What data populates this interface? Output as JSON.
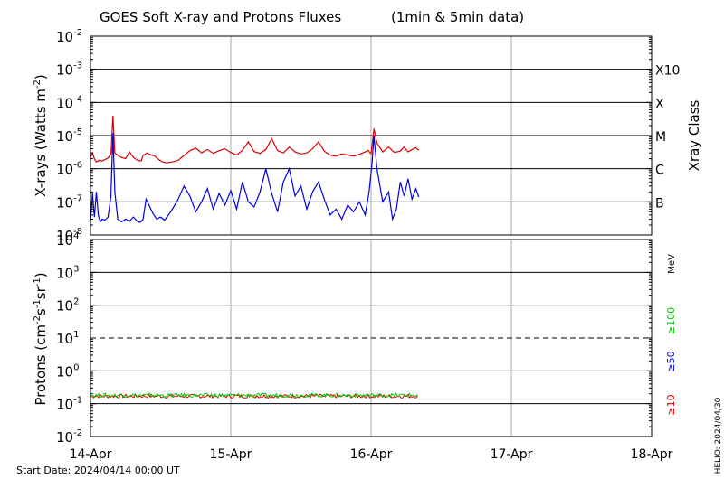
{
  "chart_data": [
    {
      "type": "line",
      "title": "GOES Soft X-ray and Protons Fluxes",
      "subtitle": "(1min & 5min data)",
      "ylabel_base": "X-rays (Watts m",
      "ylabel_exp": "-2",
      "ylabel_close": ")",
      "yscale": "log",
      "ylim": [
        1e-08,
        0.01
      ],
      "yticks": [
        {
          "exp": "-8",
          "value": 1e-08
        },
        {
          "exp": "-7",
          "value": 1e-07
        },
        {
          "exp": "-6",
          "value": 1e-06
        },
        {
          "exp": "-5",
          "value": 1e-05
        },
        {
          "exp": "-4",
          "value": 0.0001
        },
        {
          "exp": "-3",
          "value": 0.001
        },
        {
          "exp": "-2",
          "value": 0.01
        }
      ],
      "tick_base": "10",
      "right_axis_label": "Xray Class",
      "classes": [
        {
          "label": "B",
          "value": 1e-07
        },
        {
          "label": "C",
          "value": 1e-06
        },
        {
          "label": "M",
          "value": 1e-05
        },
        {
          "label": "X",
          "value": 0.0001
        },
        {
          "label": "X10",
          "value": 0.001
        }
      ],
      "x_range_days": [
        "2024-04-14",
        "2024-04-18"
      ],
      "series": [
        {
          "color": "#dd0000",
          "points": [
            [
              "2024-04-14T00:00",
              2.2e-06
            ],
            [
              "2024-04-14T00:20",
              3e-06
            ],
            [
              "2024-04-14T00:40",
              2e-06
            ],
            [
              "2024-04-14T01:00",
              1.6e-06
            ],
            [
              "2024-04-14T01:30",
              1.8e-06
            ],
            [
              "2024-04-14T02:00",
              1.7e-06
            ],
            [
              "2024-04-14T02:30",
              1.9e-06
            ],
            [
              "2024-04-14T03:00",
              2.1e-06
            ],
            [
              "2024-04-14T03:30",
              2.8e-06
            ],
            [
              "2024-04-14T03:50",
              4e-05
            ],
            [
              "2024-04-14T04:10",
              3e-06
            ],
            [
              "2024-04-14T05:00",
              2.3e-06
            ],
            [
              "2024-04-14T06:00",
              2e-06
            ],
            [
              "2024-04-14T06:40",
              3.2e-06
            ],
            [
              "2024-04-14T07:20",
              2.2e-06
            ],
            [
              "2024-04-14T08:00",
              1.8e-06
            ],
            [
              "2024-04-14T08:40",
              1.7e-06
            ],
            [
              "2024-04-14T09:00",
              2.5e-06
            ],
            [
              "2024-04-14T09:40",
              3e-06
            ],
            [
              "2024-04-14T10:20",
              2.6e-06
            ],
            [
              "2024-04-14T11:00",
              2.4e-06
            ],
            [
              "2024-04-14T11:40",
              1.9e-06
            ],
            [
              "2024-04-14T12:20",
              1.6e-06
            ],
            [
              "2024-04-14T13:00",
              1.5e-06
            ],
            [
              "2024-04-14T14:00",
              1.6e-06
            ],
            [
              "2024-04-14T15:00",
              1.8e-06
            ],
            [
              "2024-04-14T16:00",
              2.5e-06
            ],
            [
              "2024-04-14T17:00",
              3.5e-06
            ],
            [
              "2024-04-14T18:00",
              4.2e-06
            ],
            [
              "2024-04-14T19:00",
              3e-06
            ],
            [
              "2024-04-14T20:00",
              3.8e-06
            ],
            [
              "2024-04-14T21:00",
              2.9e-06
            ],
            [
              "2024-04-14T22:00",
              3.5e-06
            ],
            [
              "2024-04-14T23:00",
              4e-06
            ],
            [
              "2024-04-15T00:00",
              3.1e-06
            ],
            [
              "2024-04-15T01:00",
              2.6e-06
            ],
            [
              "2024-04-15T02:00",
              3.6e-06
            ],
            [
              "2024-04-15T03:00",
              6.5e-06
            ],
            [
              "2024-04-15T04:00",
              3.3e-06
            ],
            [
              "2024-04-15T05:00",
              2.9e-06
            ],
            [
              "2024-04-15T06:00",
              3.8e-06
            ],
            [
              "2024-04-15T07:00",
              8e-06
            ],
            [
              "2024-04-15T08:00",
              3.5e-06
            ],
            [
              "2024-04-15T09:00",
              3e-06
            ],
            [
              "2024-04-15T10:00",
              4.5e-06
            ],
            [
              "2024-04-15T11:00",
              3.2e-06
            ],
            [
              "2024-04-15T12:00",
              2.8e-06
            ],
            [
              "2024-04-15T13:00",
              3e-06
            ],
            [
              "2024-04-15T14:00",
              4e-06
            ],
            [
              "2024-04-15T15:00",
              6.5e-06
            ],
            [
              "2024-04-15T16:00",
              3.4e-06
            ],
            [
              "2024-04-15T17:00",
              2.6e-06
            ],
            [
              "2024-04-15T18:00",
              2.4e-06
            ],
            [
              "2024-04-15T19:00",
              2.8e-06
            ],
            [
              "2024-04-15T20:00",
              2.6e-06
            ],
            [
              "2024-04-15T21:00",
              2.4e-06
            ],
            [
              "2024-04-15T22:00",
              2.7e-06
            ],
            [
              "2024-04-15T23:00",
              3.2e-06
            ],
            [
              "2024-04-15T23:30",
              3.6e-06
            ],
            [
              "2024-04-16T00:00",
              2.8e-06
            ],
            [
              "2024-04-16T00:30",
              1.6e-05
            ],
            [
              "2024-04-16T01:00",
              6e-06
            ],
            [
              "2024-04-16T02:00",
              3.2e-06
            ],
            [
              "2024-04-16T03:00",
              4.5e-06
            ],
            [
              "2024-04-16T04:00",
              3.1e-06
            ],
            [
              "2024-04-16T05:00",
              3.4e-06
            ],
            [
              "2024-04-16T05:40",
              4.5e-06
            ],
            [
              "2024-04-16T06:20",
              3.2e-06
            ],
            [
              "2024-04-16T07:00",
              3.8e-06
            ],
            [
              "2024-04-16T07:40",
              4.3e-06
            ],
            [
              "2024-04-16T08:10",
              3.6e-06
            ]
          ]
        },
        {
          "color": "#0000dd",
          "points": [
            [
              "2024-04-14T00:00",
              2.5e-08
            ],
            [
              "2024-04-14T00:20",
              1.8e-07
            ],
            [
              "2024-04-14T00:40",
              3.5e-08
            ],
            [
              "2024-04-14T01:00",
              2e-07
            ],
            [
              "2024-04-14T01:20",
              4e-08
            ],
            [
              "2024-04-14T01:40",
              2.5e-08
            ],
            [
              "2024-04-14T02:00",
              3e-08
            ],
            [
              "2024-04-14T02:30",
              2.8e-08
            ],
            [
              "2024-04-14T03:00",
              3.5e-08
            ],
            [
              "2024-04-14T03:30",
              1.5e-07
            ],
            [
              "2024-04-14T03:50",
              1.2e-05
            ],
            [
              "2024-04-14T04:10",
              2e-07
            ],
            [
              "2024-04-14T04:40",
              3e-08
            ],
            [
              "2024-04-14T05:20",
              2.5e-08
            ],
            [
              "2024-04-14T06:00",
              3e-08
            ],
            [
              "2024-04-14T06:40",
              2.6e-08
            ],
            [
              "2024-04-14T07:20",
              3.5e-08
            ],
            [
              "2024-04-14T08:00",
              2.6e-08
            ],
            [
              "2024-04-14T08:30",
              2.4e-08
            ],
            [
              "2024-04-14T09:00",
              3e-08
            ],
            [
              "2024-04-14T09:30",
              1.2e-07
            ],
            [
              "2024-04-14T10:00",
              8e-08
            ],
            [
              "2024-04-14T10:40",
              4.5e-08
            ],
            [
              "2024-04-14T11:20",
              3e-08
            ],
            [
              "2024-04-14T12:00",
              3.5e-08
            ],
            [
              "2024-04-14T12:40",
              2.8e-08
            ],
            [
              "2024-04-14T13:20",
              4e-08
            ],
            [
              "2024-04-14T14:00",
              6e-08
            ],
            [
              "2024-04-14T15:00",
              1.2e-07
            ],
            [
              "2024-04-14T16:00",
              3e-07
            ],
            [
              "2024-04-14T17:00",
              1.5e-07
            ],
            [
              "2024-04-14T18:00",
              5e-08
            ],
            [
              "2024-04-14T19:00",
              1e-07
            ],
            [
              "2024-04-14T20:00",
              2.5e-07
            ],
            [
              "2024-04-14T21:00",
              6e-08
            ],
            [
              "2024-04-14T22:00",
              1.8e-07
            ],
            [
              "2024-04-14T23:00",
              8e-08
            ],
            [
              "2024-04-15T00:00",
              2.2e-07
            ],
            [
              "2024-04-15T01:00",
              6e-08
            ],
            [
              "2024-04-15T02:00",
              4e-07
            ],
            [
              "2024-04-15T03:00",
              1e-07
            ],
            [
              "2024-04-15T04:00",
              7e-08
            ],
            [
              "2024-04-15T05:00",
              2e-07
            ],
            [
              "2024-04-15T06:00",
              1e-06
            ],
            [
              "2024-04-15T07:00",
              1.8e-07
            ],
            [
              "2024-04-15T08:00",
              5e-08
            ],
            [
              "2024-04-15T09:00",
              4e-07
            ],
            [
              "2024-04-15T10:00",
              1e-06
            ],
            [
              "2024-04-15T11:00",
              1.5e-07
            ],
            [
              "2024-04-15T12:00",
              3e-07
            ],
            [
              "2024-04-15T13:00",
              6e-08
            ],
            [
              "2024-04-15T14:00",
              2e-07
            ],
            [
              "2024-04-15T15:00",
              4e-07
            ],
            [
              "2024-04-15T16:00",
              1.2e-07
            ],
            [
              "2024-04-15T17:00",
              4e-08
            ],
            [
              "2024-04-15T18:00",
              6e-08
            ],
            [
              "2024-04-15T19:00",
              3e-08
            ],
            [
              "2024-04-15T20:00",
              8e-08
            ],
            [
              "2024-04-15T21:00",
              5e-08
            ],
            [
              "2024-04-15T22:00",
              1e-07
            ],
            [
              "2024-04-15T23:00",
              4e-08
            ],
            [
              "2024-04-15T23:40",
              2e-07
            ],
            [
              "2024-04-16T00:10",
              1.5e-06
            ],
            [
              "2024-04-16T00:30",
              1e-05
            ],
            [
              "2024-04-16T01:00",
              1e-06
            ],
            [
              "2024-04-16T02:00",
              1e-07
            ],
            [
              "2024-04-16T03:00",
              2e-07
            ],
            [
              "2024-04-16T03:40",
              3e-08
            ],
            [
              "2024-04-16T04:20",
              6e-08
            ],
            [
              "2024-04-16T05:00",
              4e-07
            ],
            [
              "2024-04-16T05:40",
              1.5e-07
            ],
            [
              "2024-04-16T06:20",
              5e-07
            ],
            [
              "2024-04-16T07:00",
              1.2e-07
            ],
            [
              "2024-04-16T07:40",
              2.5e-07
            ],
            [
              "2024-04-16T08:10",
              1.4e-07
            ]
          ]
        }
      ]
    },
    {
      "type": "line",
      "ylabel_base": "Protons (cm",
      "ylabel_exp1": "-2",
      "ylabel_mid": "s",
      "ylabel_exp2": "-1",
      "ylabel_mid2": "sr",
      "ylabel_exp3": "-1",
      "ylabel_close": ")",
      "yscale": "log",
      "ylim": [
        0.01,
        10000
      ],
      "yticks": [
        {
          "exp": "-2",
          "value": 0.01
        },
        {
          "exp": "-1",
          "value": 0.1
        },
        {
          "exp": "0",
          "value": 1
        },
        {
          "exp": "1",
          "value": 10
        },
        {
          "exp": "2",
          "value": 100
        },
        {
          "exp": "3",
          "value": 1000
        },
        {
          "exp": "4",
          "value": 10000
        }
      ],
      "tick_base": "10",
      "threshold": 10,
      "unit": "MeV",
      "legend": [
        {
          "label": "≥100",
          "color": "#00cc00"
        },
        {
          "label": "≥50",
          "color": "#0000dd"
        },
        {
          "label": "≥10",
          "color": "#dd0000"
        }
      ],
      "series": [
        {
          "name": "≥10",
          "color": "#dd0000",
          "level": 0.17,
          "start": "2024-04-14T00:00",
          "end": "2024-04-16T08:10"
        },
        {
          "name": "≥100",
          "color": "#00cc00",
          "level": 0.18,
          "start": "2024-04-14T00:00",
          "end": "2024-04-16T08:10"
        }
      ],
      "xticks": [
        "14-Apr",
        "15-Apr",
        "16-Apr",
        "17-Apr",
        "18-Apr"
      ]
    }
  ],
  "footer": {
    "start_date": "Start Date: 2024/04/14 00:00 UT",
    "credit": "HELIO: 2024/04/30"
  }
}
